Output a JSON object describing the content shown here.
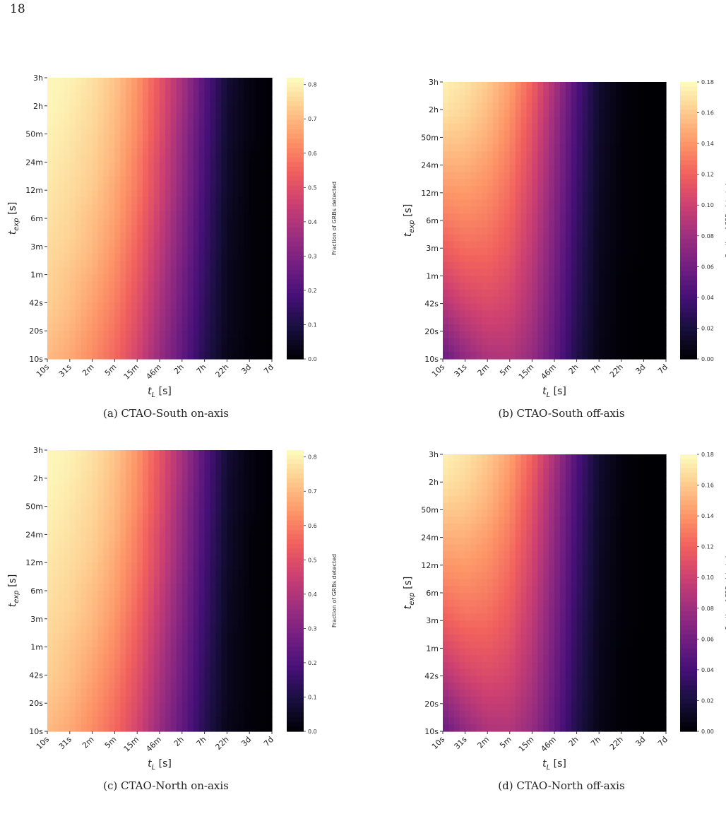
{
  "page_number": "18",
  "colorscale": [
    "#000004",
    "#180f3e",
    "#451077",
    "#721f81",
    "#9e2f7f",
    "#cd4071",
    "#f1605d",
    "#fd9567",
    "#feca8d",
    "#fcfdbf"
  ],
  "chart_data": [
    {
      "id": "a",
      "type": "heatmap",
      "caption": "(a) CTAO-South on-axis",
      "x_label_main": "t",
      "x_label_sub": "L",
      "x_label_unit": " [s]",
      "y_label_main": "t",
      "y_label_sub": "exp",
      "y_label_unit": " [s]",
      "x_ticks": [
        "10s",
        "31s",
        "2m",
        "5m",
        "15m",
        "46m",
        "2h",
        "7h",
        "22h",
        "3d",
        "7d"
      ],
      "y_ticks": [
        "3h",
        "2h",
        "50m",
        "24m",
        "12m",
        "6m",
        "3m",
        "1m",
        "42s",
        "20s",
        "10s"
      ],
      "colorbar_label": "Fraction of GRBs detected",
      "colorbar_range": [
        0,
        0.82
      ],
      "colorbar_ticks": [
        "0.0",
        "0.1",
        "0.2",
        "0.3",
        "0.4",
        "0.5",
        "0.6",
        "0.7",
        "0.8"
      ],
      "values": [
        [
          0.81,
          0.8,
          0.77,
          0.72,
          0.64,
          0.52,
          0.38,
          0.22,
          0.08,
          0.02,
          0.0
        ],
        [
          0.81,
          0.79,
          0.76,
          0.71,
          0.63,
          0.51,
          0.37,
          0.21,
          0.07,
          0.02,
          0.0
        ],
        [
          0.8,
          0.78,
          0.75,
          0.7,
          0.62,
          0.5,
          0.35,
          0.2,
          0.07,
          0.02,
          0.0
        ],
        [
          0.79,
          0.77,
          0.74,
          0.69,
          0.6,
          0.48,
          0.34,
          0.19,
          0.06,
          0.01,
          0.0
        ],
        [
          0.78,
          0.76,
          0.73,
          0.67,
          0.59,
          0.47,
          0.33,
          0.18,
          0.06,
          0.01,
          0.0
        ],
        [
          0.77,
          0.75,
          0.71,
          0.66,
          0.57,
          0.45,
          0.31,
          0.17,
          0.05,
          0.01,
          0.0
        ],
        [
          0.76,
          0.74,
          0.7,
          0.64,
          0.55,
          0.43,
          0.3,
          0.16,
          0.05,
          0.01,
          0.0
        ],
        [
          0.75,
          0.72,
          0.68,
          0.62,
          0.53,
          0.41,
          0.28,
          0.15,
          0.04,
          0.01,
          0.0
        ],
        [
          0.74,
          0.71,
          0.66,
          0.6,
          0.51,
          0.39,
          0.27,
          0.14,
          0.04,
          0.01,
          0.0
        ],
        [
          0.72,
          0.69,
          0.64,
          0.58,
          0.49,
          0.37,
          0.25,
          0.13,
          0.04,
          0.01,
          0.0
        ],
        [
          0.7,
          0.67,
          0.62,
          0.56,
          0.47,
          0.35,
          0.24,
          0.12,
          0.03,
          0.01,
          0.0
        ]
      ]
    },
    {
      "id": "b",
      "type": "heatmap",
      "caption": "(b) CTAO-South off-axis",
      "x_label_main": "t",
      "x_label_sub": "L",
      "x_label_unit": " [s]",
      "y_label_main": "t",
      "y_label_sub": "exp",
      "y_label_unit": " [s]",
      "x_ticks": [
        "10s",
        "31s",
        "2m",
        "5m",
        "15m",
        "46m",
        "2h",
        "7h",
        "22h",
        "3d",
        "7d"
      ],
      "y_ticks": [
        "3h",
        "2h",
        "50m",
        "24m",
        "12m",
        "6m",
        "3m",
        "1m",
        "42s",
        "20s",
        "10s"
      ],
      "colorbar_label": "Fraction of GRBs detected",
      "colorbar_range": [
        0,
        0.18
      ],
      "colorbar_ticks": [
        "0.00",
        "0.02",
        "0.04",
        "0.06",
        "0.08",
        "0.10",
        "0.12",
        "0.14",
        "0.16",
        "0.18"
      ],
      "values": [
        [
          0.175,
          0.17,
          0.16,
          0.145,
          0.12,
          0.085,
          0.045,
          0.015,
          0.003,
          0.0,
          0.0
        ],
        [
          0.17,
          0.165,
          0.155,
          0.14,
          0.115,
          0.08,
          0.042,
          0.014,
          0.003,
          0.0,
          0.0
        ],
        [
          0.16,
          0.158,
          0.15,
          0.135,
          0.11,
          0.076,
          0.04,
          0.013,
          0.002,
          0.0,
          0.0
        ],
        [
          0.15,
          0.15,
          0.143,
          0.13,
          0.106,
          0.073,
          0.038,
          0.012,
          0.002,
          0.0,
          0.0
        ],
        [
          0.14,
          0.142,
          0.137,
          0.125,
          0.102,
          0.07,
          0.036,
          0.011,
          0.002,
          0.0,
          0.0
        ],
        [
          0.13,
          0.134,
          0.131,
          0.12,
          0.098,
          0.067,
          0.034,
          0.01,
          0.002,
          0.0,
          0.0
        ],
        [
          0.118,
          0.125,
          0.124,
          0.115,
          0.094,
          0.064,
          0.032,
          0.009,
          0.002,
          0.0,
          0.0
        ],
        [
          0.105,
          0.114,
          0.116,
          0.109,
          0.09,
          0.061,
          0.03,
          0.008,
          0.001,
          0.0,
          0.0
        ],
        [
          0.09,
          0.102,
          0.107,
          0.103,
          0.086,
          0.058,
          0.028,
          0.008,
          0.001,
          0.0,
          0.0
        ],
        [
          0.072,
          0.088,
          0.097,
          0.096,
          0.081,
          0.055,
          0.026,
          0.007,
          0.001,
          0.0,
          0.0
        ],
        [
          0.055,
          0.074,
          0.086,
          0.088,
          0.076,
          0.052,
          0.024,
          0.006,
          0.001,
          0.0,
          0.0
        ]
      ]
    },
    {
      "id": "c",
      "type": "heatmap",
      "caption": "(c) CTAO-North on-axis",
      "x_label_main": "t",
      "x_label_sub": "L",
      "x_label_unit": " [s]",
      "y_label_main": "t",
      "y_label_sub": "exp",
      "y_label_unit": " [s]",
      "x_ticks": [
        "10s",
        "31s",
        "2m",
        "5m",
        "15m",
        "46m",
        "2h",
        "7h",
        "22h",
        "3d",
        "7d"
      ],
      "y_ticks": [
        "3h",
        "2h",
        "50m",
        "24m",
        "12m",
        "6m",
        "3m",
        "1m",
        "42s",
        "20s",
        "10s"
      ],
      "colorbar_label": "Fraction of GRBs detected",
      "colorbar_range": [
        0,
        0.82
      ],
      "colorbar_ticks": [
        "0.0",
        "0.1",
        "0.2",
        "0.3",
        "0.4",
        "0.5",
        "0.6",
        "0.7",
        "0.8"
      ],
      "values": [
        [
          0.81,
          0.8,
          0.77,
          0.72,
          0.64,
          0.52,
          0.38,
          0.22,
          0.08,
          0.02,
          0.0
        ],
        [
          0.81,
          0.79,
          0.76,
          0.71,
          0.63,
          0.51,
          0.37,
          0.21,
          0.07,
          0.02,
          0.0
        ],
        [
          0.8,
          0.78,
          0.75,
          0.7,
          0.62,
          0.5,
          0.35,
          0.2,
          0.07,
          0.02,
          0.0
        ],
        [
          0.79,
          0.77,
          0.74,
          0.69,
          0.6,
          0.48,
          0.34,
          0.19,
          0.06,
          0.01,
          0.0
        ],
        [
          0.78,
          0.76,
          0.73,
          0.67,
          0.59,
          0.47,
          0.33,
          0.18,
          0.06,
          0.01,
          0.0
        ],
        [
          0.77,
          0.75,
          0.71,
          0.66,
          0.57,
          0.45,
          0.31,
          0.17,
          0.05,
          0.01,
          0.0
        ],
        [
          0.76,
          0.74,
          0.7,
          0.64,
          0.55,
          0.43,
          0.3,
          0.16,
          0.05,
          0.01,
          0.0
        ],
        [
          0.75,
          0.72,
          0.68,
          0.62,
          0.53,
          0.41,
          0.28,
          0.15,
          0.04,
          0.01,
          0.0
        ],
        [
          0.74,
          0.71,
          0.66,
          0.6,
          0.51,
          0.39,
          0.27,
          0.14,
          0.04,
          0.01,
          0.0
        ],
        [
          0.72,
          0.69,
          0.64,
          0.58,
          0.49,
          0.37,
          0.25,
          0.13,
          0.04,
          0.01,
          0.0
        ],
        [
          0.7,
          0.67,
          0.62,
          0.56,
          0.47,
          0.35,
          0.24,
          0.12,
          0.03,
          0.01,
          0.0
        ]
      ]
    },
    {
      "id": "d",
      "type": "heatmap",
      "caption": "(d) CTAO-North off-axis",
      "x_label_main": "t",
      "x_label_sub": "L",
      "x_label_unit": " [s]",
      "y_label_main": "t",
      "y_label_sub": "exp",
      "y_label_unit": " [s]",
      "x_ticks": [
        "10s",
        "31s",
        "2m",
        "5m",
        "15m",
        "46m",
        "2h",
        "7h",
        "22h",
        "3d",
        "7d"
      ],
      "y_ticks": [
        "3h",
        "2h",
        "50m",
        "24m",
        "12m",
        "6m",
        "3m",
        "1m",
        "42s",
        "20s",
        "10s"
      ],
      "colorbar_label": "Fraction of GRBs detected",
      "colorbar_range": [
        0,
        0.18
      ],
      "colorbar_ticks": [
        "0.00",
        "0.02",
        "0.04",
        "0.06",
        "0.08",
        "0.10",
        "0.12",
        "0.14",
        "0.16",
        "0.18"
      ],
      "values": [
        [
          0.175,
          0.17,
          0.16,
          0.145,
          0.12,
          0.085,
          0.045,
          0.015,
          0.003,
          0.0,
          0.0
        ],
        [
          0.17,
          0.165,
          0.155,
          0.14,
          0.115,
          0.08,
          0.042,
          0.014,
          0.003,
          0.0,
          0.0
        ],
        [
          0.16,
          0.158,
          0.15,
          0.135,
          0.11,
          0.076,
          0.04,
          0.013,
          0.002,
          0.0,
          0.0
        ],
        [
          0.15,
          0.15,
          0.143,
          0.13,
          0.106,
          0.073,
          0.038,
          0.012,
          0.002,
          0.0,
          0.0
        ],
        [
          0.14,
          0.142,
          0.137,
          0.125,
          0.102,
          0.07,
          0.036,
          0.011,
          0.002,
          0.0,
          0.0
        ],
        [
          0.13,
          0.134,
          0.131,
          0.12,
          0.098,
          0.067,
          0.034,
          0.01,
          0.002,
          0.0,
          0.0
        ],
        [
          0.118,
          0.125,
          0.124,
          0.115,
          0.094,
          0.064,
          0.032,
          0.009,
          0.002,
          0.0,
          0.0
        ],
        [
          0.105,
          0.114,
          0.116,
          0.109,
          0.09,
          0.061,
          0.03,
          0.008,
          0.001,
          0.0,
          0.0
        ],
        [
          0.09,
          0.102,
          0.107,
          0.103,
          0.086,
          0.058,
          0.028,
          0.008,
          0.001,
          0.0,
          0.0
        ],
        [
          0.072,
          0.088,
          0.097,
          0.096,
          0.081,
          0.055,
          0.026,
          0.007,
          0.001,
          0.0,
          0.0
        ],
        [
          0.055,
          0.074,
          0.086,
          0.088,
          0.076,
          0.052,
          0.024,
          0.006,
          0.001,
          0.0,
          0.0
        ]
      ]
    }
  ]
}
